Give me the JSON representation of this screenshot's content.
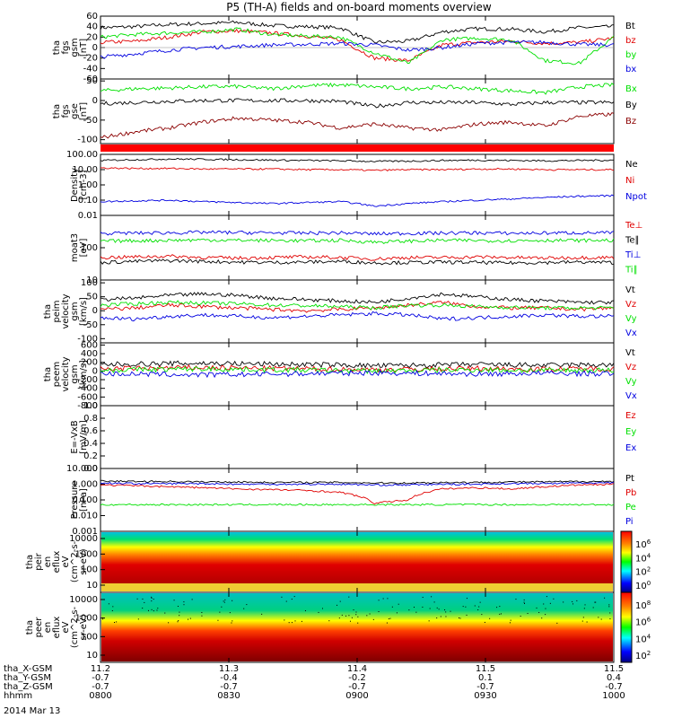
{
  "title": "P5 (TH-A) fields and on-board moments overview",
  "date_label": "2014 Mar 13",
  "colors": {
    "black": "#000000",
    "red": "#e00000",
    "green": "#00e000",
    "blue": "#0000e0",
    "darkred": "#8b0000",
    "redband": "#ff0000"
  },
  "ephemeris": {
    "rows": [
      {
        "label": "tha_X-GSM",
        "values": [
          "11.2",
          "11.3",
          "11.4",
          "11.5",
          "11.5"
        ]
      },
      {
        "label": "tha_Y-GSM",
        "values": [
          "-0.7",
          "-0.4",
          "-0.2",
          "0.1",
          "0.4"
        ]
      },
      {
        "label": "tha_Z-GSM",
        "values": [
          "-0.7",
          "-0.7",
          "-0.7",
          "-0.7",
          "-0.7"
        ]
      },
      {
        "label": "hhmm",
        "values": [
          "0800",
          "0830",
          "0900",
          "0930",
          "1000"
        ]
      }
    ]
  },
  "chart_data": [
    {
      "type": "line",
      "ylabel": [
        "tha",
        "fgs",
        "gsm",
        "[nT]"
      ],
      "yticks": [
        "60",
        "40",
        "20",
        "0",
        "-20",
        "-40",
        "-60"
      ],
      "ylim": [
        -60,
        60
      ],
      "series": [
        {
          "name": "Bt",
          "color": "black",
          "values": [
            38,
            40,
            44,
            46,
            48,
            42,
            40,
            38,
            10,
            12,
            30,
            36,
            35,
            30,
            38,
            40
          ]
        },
        {
          "name": "bz",
          "color": "red",
          "values": [
            10,
            12,
            20,
            30,
            32,
            28,
            22,
            15,
            -20,
            -25,
            5,
            10,
            12,
            8,
            10,
            18
          ]
        },
        {
          "name": "by",
          "color": "green",
          "values": [
            20,
            25,
            28,
            30,
            35,
            25,
            22,
            20,
            -10,
            -30,
            15,
            18,
            15,
            -25,
            -30,
            20
          ]
        },
        {
          "name": "bx",
          "color": "blue",
          "values": [
            -18,
            -12,
            -5,
            0,
            2,
            5,
            6,
            8,
            5,
            -5,
            0,
            8,
            10,
            10,
            6,
            5
          ]
        }
      ]
    },
    {
      "type": "line",
      "ylabel": [
        "tha",
        "fgs",
        "gse",
        "[nT]"
      ],
      "yticks": [
        "50",
        "0",
        "-50",
        "-100"
      ],
      "ylim": [
        -110,
        55
      ],
      "series": [
        {
          "name": "Bx",
          "color": "green",
          "values": [
            25,
            30,
            32,
            35,
            36,
            30,
            38,
            40,
            35,
            30,
            35,
            30,
            25,
            20,
            35,
            40
          ]
        },
        {
          "name": "By",
          "color": "black",
          "values": [
            -8,
            -5,
            -2,
            0,
            0,
            0,
            0,
            -2,
            -15,
            -5,
            -5,
            -5,
            -10,
            -5,
            -5,
            -5
          ]
        },
        {
          "name": "Bz",
          "color": "darkred",
          "values": [
            -95,
            -80,
            -70,
            -55,
            -45,
            -50,
            -55,
            -70,
            -60,
            -70,
            -75,
            -60,
            -55,
            -65,
            -40,
            -35
          ]
        }
      ]
    },
    {
      "type": "line",
      "ylabel": [
        "Density",
        "[cm-3]"
      ],
      "yticks": [
        "100.00",
        "10.00",
        "1.00",
        "0.10",
        "0.01"
      ],
      "log": true,
      "ylim": [
        0.01,
        100
      ],
      "series": [
        {
          "name": "Ne",
          "color": "black",
          "values": [
            40,
            45,
            50,
            48,
            45,
            42,
            40,
            38,
            35,
            36,
            40,
            42,
            40,
            38,
            40,
            42
          ]
        },
        {
          "name": "Ni",
          "color": "red",
          "values": [
            13,
            12,
            12,
            11,
            11,
            11,
            10,
            10,
            9,
            10,
            10,
            11,
            11,
            10,
            10,
            10
          ]
        },
        {
          "name": "Npot",
          "color": "blue",
          "values": [
            0.08,
            0.09,
            0.1,
            0.08,
            0.07,
            0.06,
            0.07,
            0.08,
            0.04,
            0.06,
            0.08,
            0.1,
            0.12,
            0.15,
            0.18,
            0.2
          ]
        }
      ]
    },
    {
      "type": "line",
      "ylabel": [
        "moat3",
        "[eV]"
      ],
      "yticks": [
        "100",
        "10"
      ],
      "log": true,
      "ylim": [
        10,
        1000
      ],
      "series": [
        {
          "name": "Te⊥",
          "color": "red",
          "values": [
            50,
            52,
            55,
            50,
            48,
            50,
            52,
            50,
            45,
            50,
            50,
            52,
            50,
            48,
            50,
            50
          ]
        },
        {
          "name": "Te∥",
          "color": "black",
          "values": [
            35,
            38,
            40,
            38,
            36,
            35,
            36,
            38,
            34,
            35,
            36,
            35,
            34,
            35,
            36,
            35
          ]
        },
        {
          "name": "Ti⊥",
          "color": "blue",
          "values": [
            280,
            285,
            290,
            300,
            295,
            290,
            285,
            290,
            270,
            280,
            285,
            290,
            280,
            285,
            290,
            290
          ]
        },
        {
          "name": "Ti∥",
          "color": "green",
          "values": [
            160,
            165,
            170,
            175,
            170,
            168,
            165,
            170,
            150,
            160,
            170,
            168,
            165,
            170,
            168,
            170
          ]
        }
      ]
    },
    {
      "type": "line",
      "ylabel": [
        "tha",
        "peim",
        "velocity",
        "gsm",
        "[km/s]"
      ],
      "yticks": [
        "100",
        "50",
        "0",
        "-50",
        "-100"
      ],
      "ylim": [
        -115,
        110
      ],
      "series": [
        {
          "name": "Vt",
          "color": "black",
          "values": [
            40,
            45,
            55,
            60,
            55,
            45,
            40,
            35,
            30,
            45,
            60,
            50,
            40,
            35,
            30,
            30
          ]
        },
        {
          "name": "Vz",
          "color": "red",
          "values": [
            5,
            10,
            20,
            15,
            10,
            5,
            0,
            5,
            10,
            20,
            30,
            15,
            10,
            10,
            5,
            10
          ]
        },
        {
          "name": "Vy",
          "color": "green",
          "values": [
            20,
            25,
            30,
            28,
            25,
            20,
            18,
            15,
            10,
            20,
            20,
            15,
            12,
            10,
            10,
            10
          ]
        },
        {
          "name": "Vx",
          "color": "blue",
          "values": [
            -25,
            -30,
            -20,
            -15,
            -20,
            -25,
            -20,
            -15,
            -10,
            -15,
            -30,
            -25,
            -20,
            -15,
            -20,
            -20
          ]
        }
      ]
    },
    {
      "type": "line",
      "ylabel": [
        "tha",
        "peem",
        "velocity",
        "gsm",
        "[km/s]"
      ],
      "yticks": [
        "600",
        "400",
        "200",
        "0",
        "-200",
        "-400",
        "-600",
        "-800"
      ],
      "ylim": [
        -800,
        650
      ],
      "series": [
        {
          "name": "Vt",
          "color": "black",
          "values": [
            150,
            160,
            170,
            180,
            170,
            160,
            150,
            140,
            120,
            130,
            140,
            150,
            140,
            130,
            140,
            140
          ]
        },
        {
          "name": "Vz",
          "color": "red",
          "values": [
            50,
            60,
            70,
            80,
            70,
            60,
            50,
            40,
            30,
            40,
            50,
            60,
            50,
            40,
            50,
            50
          ]
        },
        {
          "name": "Vy",
          "color": "green",
          "values": [
            20,
            30,
            40,
            50,
            40,
            30,
            20,
            10,
            0,
            10,
            20,
            30,
            20,
            10,
            20,
            20
          ]
        },
        {
          "name": "Vx",
          "color": "blue",
          "values": [
            -60,
            -70,
            -80,
            -90,
            -80,
            -70,
            -60,
            -50,
            -40,
            -50,
            -60,
            -70,
            -60,
            -50,
            -60,
            -60
          ]
        }
      ]
    },
    {
      "type": "line",
      "ylabel": [
        "E=-VxB",
        "[mV/m]"
      ],
      "yticks": [
        "1.0",
        "0.8",
        "0.6",
        "0.4",
        "0.2",
        "0.0"
      ],
      "ylim": [
        0,
        1
      ],
      "series": [
        {
          "name": "Ez",
          "color": "red",
          "values": []
        },
        {
          "name": "Ey",
          "color": "green",
          "values": []
        },
        {
          "name": "Ex",
          "color": "blue",
          "values": []
        }
      ]
    },
    {
      "type": "line",
      "ylabel": [
        "Pressure",
        "[nPa]"
      ],
      "yticks": [
        "10.000",
        "1.000",
        "0.100",
        "0.010",
        "0.001"
      ],
      "log": true,
      "ylim": [
        0.001,
        10
      ],
      "series": [
        {
          "name": "Pt",
          "color": "black",
          "values": [
            1.6,
            1.5,
            1.5,
            1.4,
            1.4,
            1.3,
            1.3,
            1.3,
            1.2,
            1.2,
            1.3,
            1.3,
            1.4,
            1.4,
            1.5,
            1.5
          ]
        },
        {
          "name": "Pb",
          "color": "red",
          "values": [
            0.9,
            0.8,
            0.7,
            0.6,
            0.5,
            0.45,
            0.4,
            0.3,
            0.06,
            0.1,
            0.5,
            0.6,
            0.5,
            0.7,
            0.9,
            1.0
          ]
        },
        {
          "name": "Pe",
          "color": "green",
          "values": [
            0.05,
            0.05,
            0.05,
            0.05,
            0.05,
            0.05,
            0.05,
            0.05,
            0.05,
            0.05,
            0.05,
            0.05,
            0.05,
            0.05,
            0.05,
            0.05
          ]
        },
        {
          "name": "Pi",
          "color": "blue",
          "values": [
            1.2,
            1.1,
            1.1,
            1.1,
            1.0,
            1.0,
            1.0,
            1.0,
            0.9,
            0.9,
            1.0,
            1.0,
            1.1,
            1.1,
            1.2,
            1.2
          ]
        }
      ]
    },
    {
      "type": "heatmap",
      "ylabel": [
        "tha",
        "peir",
        "en",
        "eflux",
        "eV",
        "(cm^2-s-",
        "sr-eV)"
      ],
      "yticks": [
        "10000",
        "1000",
        "100",
        "10"
      ],
      "colorbar_ticks": [
        "10^6",
        "10^4",
        "10^2",
        "10^0"
      ]
    },
    {
      "type": "heatmap",
      "ylabel": [
        "tha",
        "peer",
        "en",
        "eflux",
        "eV",
        "(cm^2-s-",
        "sr-eV)"
      ],
      "yticks": [
        "10000",
        "1000",
        "100",
        "10"
      ],
      "colorbar_ticks": [
        "10^8",
        "10^6",
        "10^4",
        "10^2"
      ]
    }
  ]
}
